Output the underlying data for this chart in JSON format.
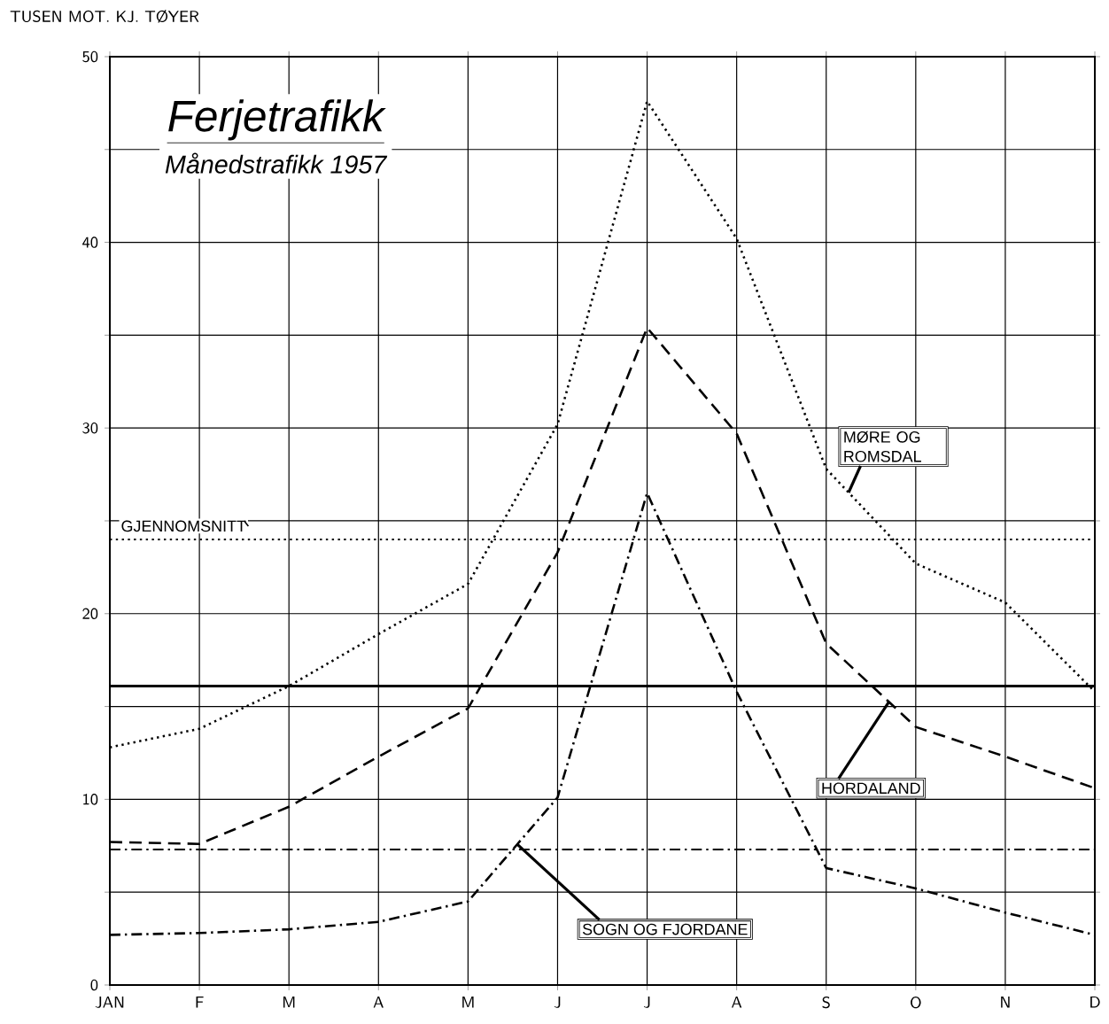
{
  "chart_data": {
    "type": "line",
    "title": "Ferjetrafikk",
    "subtitle": "Månedstrafikk 1957",
    "ylabel": "TUSEN MOT. KJ. TØYER",
    "categories": [
      "JAN",
      "F",
      "M",
      "A",
      "M",
      "J",
      "J",
      "A",
      "S",
      "O",
      "N",
      "D"
    ],
    "series": [
      {
        "name": "MØRE OG ROMSDAL",
        "color": "#000000",
        "line_style": "dotted",
        "values": [
          12.8,
          13.8,
          16.1,
          18.9,
          21.6,
          30.2,
          47.6,
          40.2,
          27.8,
          22.7,
          20.6,
          15.8
        ]
      },
      {
        "name": "HORDALAND",
        "color": "#000000",
        "line_style": "dashed",
        "values": [
          7.7,
          7.6,
          9.6,
          12.3,
          14.9,
          23.3,
          35.4,
          29.7,
          18.4,
          13.9,
          12.3,
          10.6
        ]
      },
      {
        "name": "SOGN OG FJORDANE",
        "color": "#000000",
        "line_style": "dashdot",
        "values": [
          2.7,
          2.8,
          3.0,
          3.4,
          4.5,
          10.1,
          26.5,
          15.8,
          6.3,
          5.2,
          3.9,
          2.7
        ]
      }
    ],
    "ylim": [
      0,
      50
    ],
    "yticks": [
      0,
      {
        "value": 5,
        "label": null
      },
      10,
      {
        "value": 15,
        "label": null
      },
      20,
      {
        "value": 25,
        "label": null
      },
      30,
      {
        "value": 35,
        "label": null
      },
      40,
      {
        "value": 45,
        "label": null
      },
      50
    ],
    "ref_lines": [
      {
        "axis": "y",
        "value": 24.0,
        "label": "GJENNOMSNITT",
        "color": "#000000",
        "line_style": "dotted"
      },
      {
        "axis": "y",
        "value": 16.1,
        "color": "#000000",
        "line_style": "solid"
      },
      {
        "axis": "y",
        "value": 7.3,
        "color": "#000000",
        "line_style": "dashdot"
      }
    ],
    "grid": true,
    "marker": "none"
  }
}
